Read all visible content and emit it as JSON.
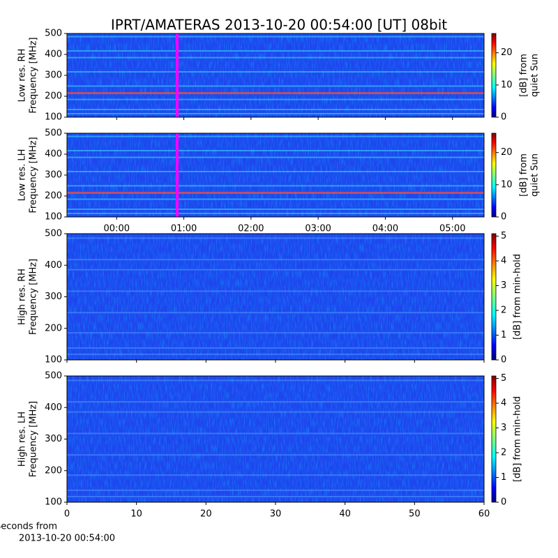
{
  "chart_data": {
    "type": "spectrogram",
    "title": "IPRT/AMATERAS 2013-10-20 00:54:00 [UT]   08bit",
    "time_axis": {
      "xlim": [
        -0.74,
        5.47
      ],
      "xticks": [
        {
          "value": 0,
          "label": "00:00"
        },
        {
          "value": 1,
          "label": "01:00"
        },
        {
          "value": 2,
          "label": "02:00"
        },
        {
          "value": 3,
          "label": "03:00"
        },
        {
          "value": 4,
          "label": "04:00"
        },
        {
          "value": 5,
          "label": "05:00"
        }
      ],
      "marker": {
        "value": 0.9,
        "color": "#ff00ff"
      }
    },
    "seconds_axis": {
      "xlim": [
        0,
        60
      ],
      "xticks": [
        0,
        10,
        20,
        30,
        40,
        50,
        60
      ],
      "xlabel": [
        "Seconds from",
        "2013-10-20 00:54:00"
      ]
    },
    "panels": [
      {
        "xaxis": "time_axis",
        "ylabel": [
          "Low res. RH",
          "Frequency [MHz]"
        ],
        "ylim": [
          100,
          500
        ],
        "yticks": [
          100,
          200,
          300,
          400,
          500
        ],
        "cbar_label": [
          "[dB] from",
          "quiet Sun"
        ],
        "clim": [
          0,
          26
        ],
        "cticks": [
          0,
          10,
          20
        ]
      },
      {
        "xaxis": "time_axis",
        "ylabel": [
          "Low res. LH",
          "Frequency [MHz]"
        ],
        "ylim": [
          100,
          500
        ],
        "yticks": [
          100,
          200,
          300,
          400,
          500
        ],
        "cbar_label": [
          "[dB] from",
          "quiet Sun"
        ],
        "clim": [
          0,
          26
        ],
        "cticks": [
          0,
          10,
          20
        ]
      },
      {
        "xaxis": "seconds_axis",
        "ylabel": [
          "High res. RH",
          "Frequency [MHz]"
        ],
        "ylim": [
          100,
          500
        ],
        "yticks": [
          100,
          200,
          300,
          400,
          500
        ],
        "cbar_label": [
          "[dB] from min-hold"
        ],
        "clim": [
          0,
          5.1
        ],
        "cticks": [
          0,
          1,
          2,
          3,
          4,
          5
        ]
      },
      {
        "xaxis": "seconds_axis",
        "ylabel": [
          "High res. LH",
          "Frequency [MHz]"
        ],
        "ylim": [
          100,
          500
        ],
        "yticks": [
          100,
          200,
          300,
          400,
          500
        ],
        "cbar_label": [
          "[dB] from min-hold"
        ],
        "clim": [
          0,
          5.1
        ],
        "cticks": [
          0,
          1,
          2,
          3,
          4,
          5
        ]
      }
    ]
  }
}
